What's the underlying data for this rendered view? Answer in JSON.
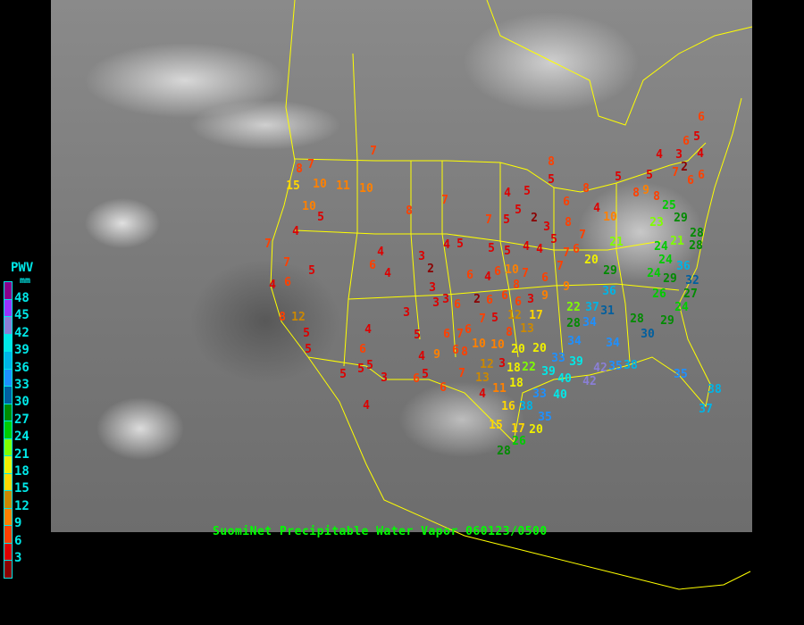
{
  "title": "SuomiNet Precipitable Water Vapor 060123/0500",
  "legend": {
    "title": "PWV",
    "unit": "mm",
    "labels": [
      "48",
      "45",
      "42",
      "39",
      "36",
      "33",
      "30",
      "27",
      "24",
      "21",
      "18",
      "15",
      "12",
      "9",
      "6",
      "3"
    ],
    "colors": [
      "#8b008b",
      "#9933ff",
      "#8a7fd6",
      "#00e8e8",
      "#00b4e6",
      "#1e90ff",
      "#005f9f",
      "#008b00",
      "#00cc00",
      "#80ff00",
      "#f0f000",
      "#ffd700",
      "#cc8800",
      "#ff8000",
      "#ff4000",
      "#dd0000",
      "#8b0000"
    ]
  },
  "map": {
    "border_color": "#ffff00"
  },
  "stations": [
    6,
    5,
    4,
    3,
    2,
    4,
    6,
    5,
    8,
    9,
    8,
    7,
    6,
    6,
    5,
    8,
    4,
    10,
    6,
    8,
    5,
    5,
    4,
    5,
    2,
    3,
    8,
    7,
    5,
    4,
    5,
    4,
    5,
    5,
    5,
    4,
    7,
    8,
    7,
    5,
    4,
    10,
    11,
    10,
    10,
    15,
    8,
    7,
    7,
    7,
    6,
    5,
    4,
    8,
    12,
    5,
    5,
    4,
    6,
    4,
    3,
    2,
    3,
    3,
    3,
    3,
    6,
    6,
    6,
    7,
    8,
    6,
    7,
    7,
    9,
    6,
    7,
    20,
    21,
    29,
    36,
    31,
    22,
    28,
    34,
    34,
    37,
    34,
    39,
    33,
    40,
    42,
    42,
    35,
    40,
    39,
    33,
    35,
    38,
    22,
    20,
    18,
    18,
    16,
    11,
    17,
    20,
    26,
    15,
    28,
    4,
    12,
    13,
    7,
    10,
    10,
    13,
    20,
    17,
    12,
    6,
    6,
    6,
    7,
    5,
    2,
    4,
    8,
    3,
    3,
    6,
    10,
    9,
    7,
    6,
    6,
    8,
    9,
    5,
    4,
    4,
    6,
    5,
    5,
    5,
    3,
    6,
    5,
    6,
    4,
    28,
    30,
    29,
    23,
    25,
    29,
    21,
    24,
    24,
    24,
    29,
    26,
    36,
    32,
    28,
    28,
    27,
    24,
    35,
    38,
    37,
    38
  ]
}
